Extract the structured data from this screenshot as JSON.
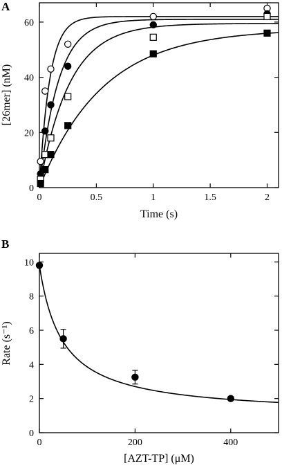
{
  "chart_data": [
    {
      "panel_label": "A",
      "type": "scatter",
      "xlabel": "Time (s)",
      "ylabel": "[26mer] (nM)",
      "xlim": [
        0,
        2.1
      ],
      "ylim": [
        0,
        67
      ],
      "xticks": [
        0,
        0.5,
        1,
        1.5,
        2
      ],
      "yticks": [
        0,
        20,
        40,
        60
      ],
      "xtick_labels": [
        "0",
        "0.5",
        "1",
        "1.5",
        "2"
      ],
      "ytick_labels": [
        "0",
        "20",
        "40",
        "60"
      ],
      "grid": false,
      "series": [
        {
          "marker": "open-circle",
          "x": [
            0.01,
            0.05,
            0.1,
            0.25,
            1,
            2
          ],
          "y": [
            9.5,
            35,
            43,
            52,
            62,
            65
          ],
          "fit": {
            "model": "single-exponential",
            "amplitude": 62,
            "rate": 11
          }
        },
        {
          "marker": "filled-circle",
          "x": [
            0.01,
            0.05,
            0.1,
            0.25,
            1,
            2
          ],
          "y": [
            5,
            20.5,
            30,
            44,
            59,
            63
          ],
          "fit": {
            "model": "single-exponential",
            "amplitude": 61,
            "rate": 6
          }
        },
        {
          "marker": "open-square",
          "x": [
            0.01,
            0.05,
            0.1,
            0.25,
            1,
            2
          ],
          "y": [
            3,
            12,
            18,
            33,
            54.5,
            62
          ],
          "fit": {
            "model": "single-exponential",
            "amplitude": 59.5,
            "rate": 3.8
          }
        },
        {
          "marker": "filled-square",
          "x": [
            0.01,
            0.05,
            0.1,
            0.25,
            1,
            2
          ],
          "y": [
            1.5,
            6.5,
            12,
            22.5,
            48.5,
            56
          ],
          "fit": {
            "model": "single-exponential",
            "amplitude": 57.5,
            "rate": 1.8
          }
        }
      ]
    },
    {
      "panel_label": "B",
      "type": "scatter",
      "xlabel": "[AZT-TP] (μM)",
      "ylabel": "Rate (s⁻¹)",
      "xlim": [
        0,
        500
      ],
      "ylim": [
        0,
        10.5
      ],
      "xticks": [
        0,
        200,
        400
      ],
      "yticks": [
        0,
        2,
        4,
        6,
        8,
        10
      ],
      "xtick_labels": [
        "0",
        "200",
        "400"
      ],
      "ytick_labels": [
        "0",
        "2",
        "4",
        "6",
        "8",
        "10"
      ],
      "grid": false,
      "series": [
        {
          "marker": "filled-circle",
          "x": [
            0,
            50,
            200,
            400
          ],
          "y": [
            9.8,
            5.5,
            3.25,
            2.0
          ],
          "error": [
            0,
            0.55,
            0.4,
            0
          ],
          "fit": {
            "model": "hyperbolic-decrease",
            "y0": 9.8,
            "ymin": 1.0,
            "kd": 48
          }
        }
      ]
    }
  ]
}
